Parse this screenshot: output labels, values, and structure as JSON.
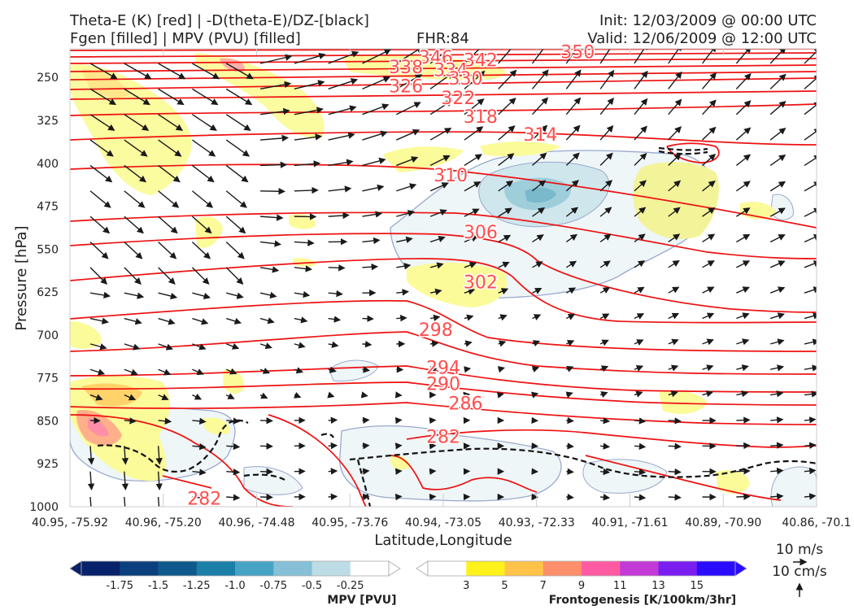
{
  "header": {
    "left_line1": "Theta-E (K) [red] | -D(theta-E)/DZ-[black]",
    "left_line2": "Fgen [filled] | MPV (PVU) [filled]",
    "center": "FHR:84",
    "right_line1": "Init: 12/03/2009 @ 00:00 UTC",
    "right_line2": "Valid: 12/06/2009 @ 12:00 UTC"
  },
  "chart_data": {
    "type": "cross-section",
    "xlabel": "Latitude,Longitude",
    "ylabel": "Pressure [hPa]",
    "ylim": [
      1000,
      200
    ],
    "y_ticks": [
      250,
      325,
      400,
      475,
      550,
      625,
      700,
      775,
      850,
      925,
      1000
    ],
    "x_ticks": [
      "40.95, -75.92",
      "40.96, -75.20",
      "40.96, -74.48",
      "40.95, -73.76",
      "40.94, -73.05",
      "40.93, -72.33",
      "40.91, -71.61",
      "40.89, -70.90",
      "40.86, -70.1"
    ],
    "theta_e_contours": [
      {
        "label": "350",
        "x_label": 0.68,
        "p_label": 205
      },
      {
        "label": "346",
        "x_label": 0.49,
        "p_label": 214
      },
      {
        "label": "342",
        "x_label": 0.55,
        "p_label": 219
      },
      {
        "label": "338",
        "x_label": 0.45,
        "p_label": 231
      },
      {
        "label": "334",
        "x_label": 0.51,
        "p_label": 236
      },
      {
        "label": "330",
        "x_label": 0.53,
        "p_label": 251
      },
      {
        "label": "326",
        "x_label": 0.45,
        "p_label": 265
      },
      {
        "label": "322",
        "x_label": 0.52,
        "p_label": 285
      },
      {
        "label": "318",
        "x_label": 0.55,
        "p_label": 318
      },
      {
        "label": "314",
        "x_label": 0.63,
        "p_label": 349
      },
      {
        "label": "310",
        "x_label": 0.51,
        "p_label": 420
      },
      {
        "label": "306",
        "x_label": 0.55,
        "p_label": 520
      },
      {
        "label": "302",
        "x_label": 0.55,
        "p_label": 607
      },
      {
        "label": "298",
        "x_label": 0.49,
        "p_label": 690
      },
      {
        "label": "294",
        "x_label": 0.5,
        "p_label": 756
      },
      {
        "label": "290",
        "x_label": 0.5,
        "p_label": 785
      },
      {
        "label": "286",
        "x_label": 0.53,
        "p_label": 819
      },
      {
        "label": "282",
        "x_label": 0.5,
        "p_label": 877
      },
      {
        "label": "282",
        "x_label": 0.18,
        "p_label": 985
      }
    ],
    "wind_reference": {
      "horizontal": "10 m/s",
      "vertical": "10 cm/s"
    },
    "colorbars": [
      {
        "label": "MPV [PVU]",
        "ticks": [
          "-1.75",
          "-1.5",
          "-1.25",
          "-1.0",
          "-0.75",
          "-0.5",
          "-0.25"
        ],
        "colors": [
          "#08216b",
          "#0b3f7d",
          "#0f5a8c",
          "#1b7fa8",
          "#47a3c3",
          "#85c0d6",
          "#bcdde6",
          "#ffffff"
        ]
      },
      {
        "label": "Frontogenesis [K/100km/3hr]",
        "ticks": [
          "3",
          "5",
          "7",
          "9",
          "11",
          "13",
          "15"
        ],
        "colors": [
          "#ffffff",
          "#fff21a",
          "#ffc34a",
          "#ff8f6a",
          "#ff5aa2",
          "#c43ad6",
          "#7a1ef0",
          "#2a0cff"
        ]
      }
    ]
  }
}
